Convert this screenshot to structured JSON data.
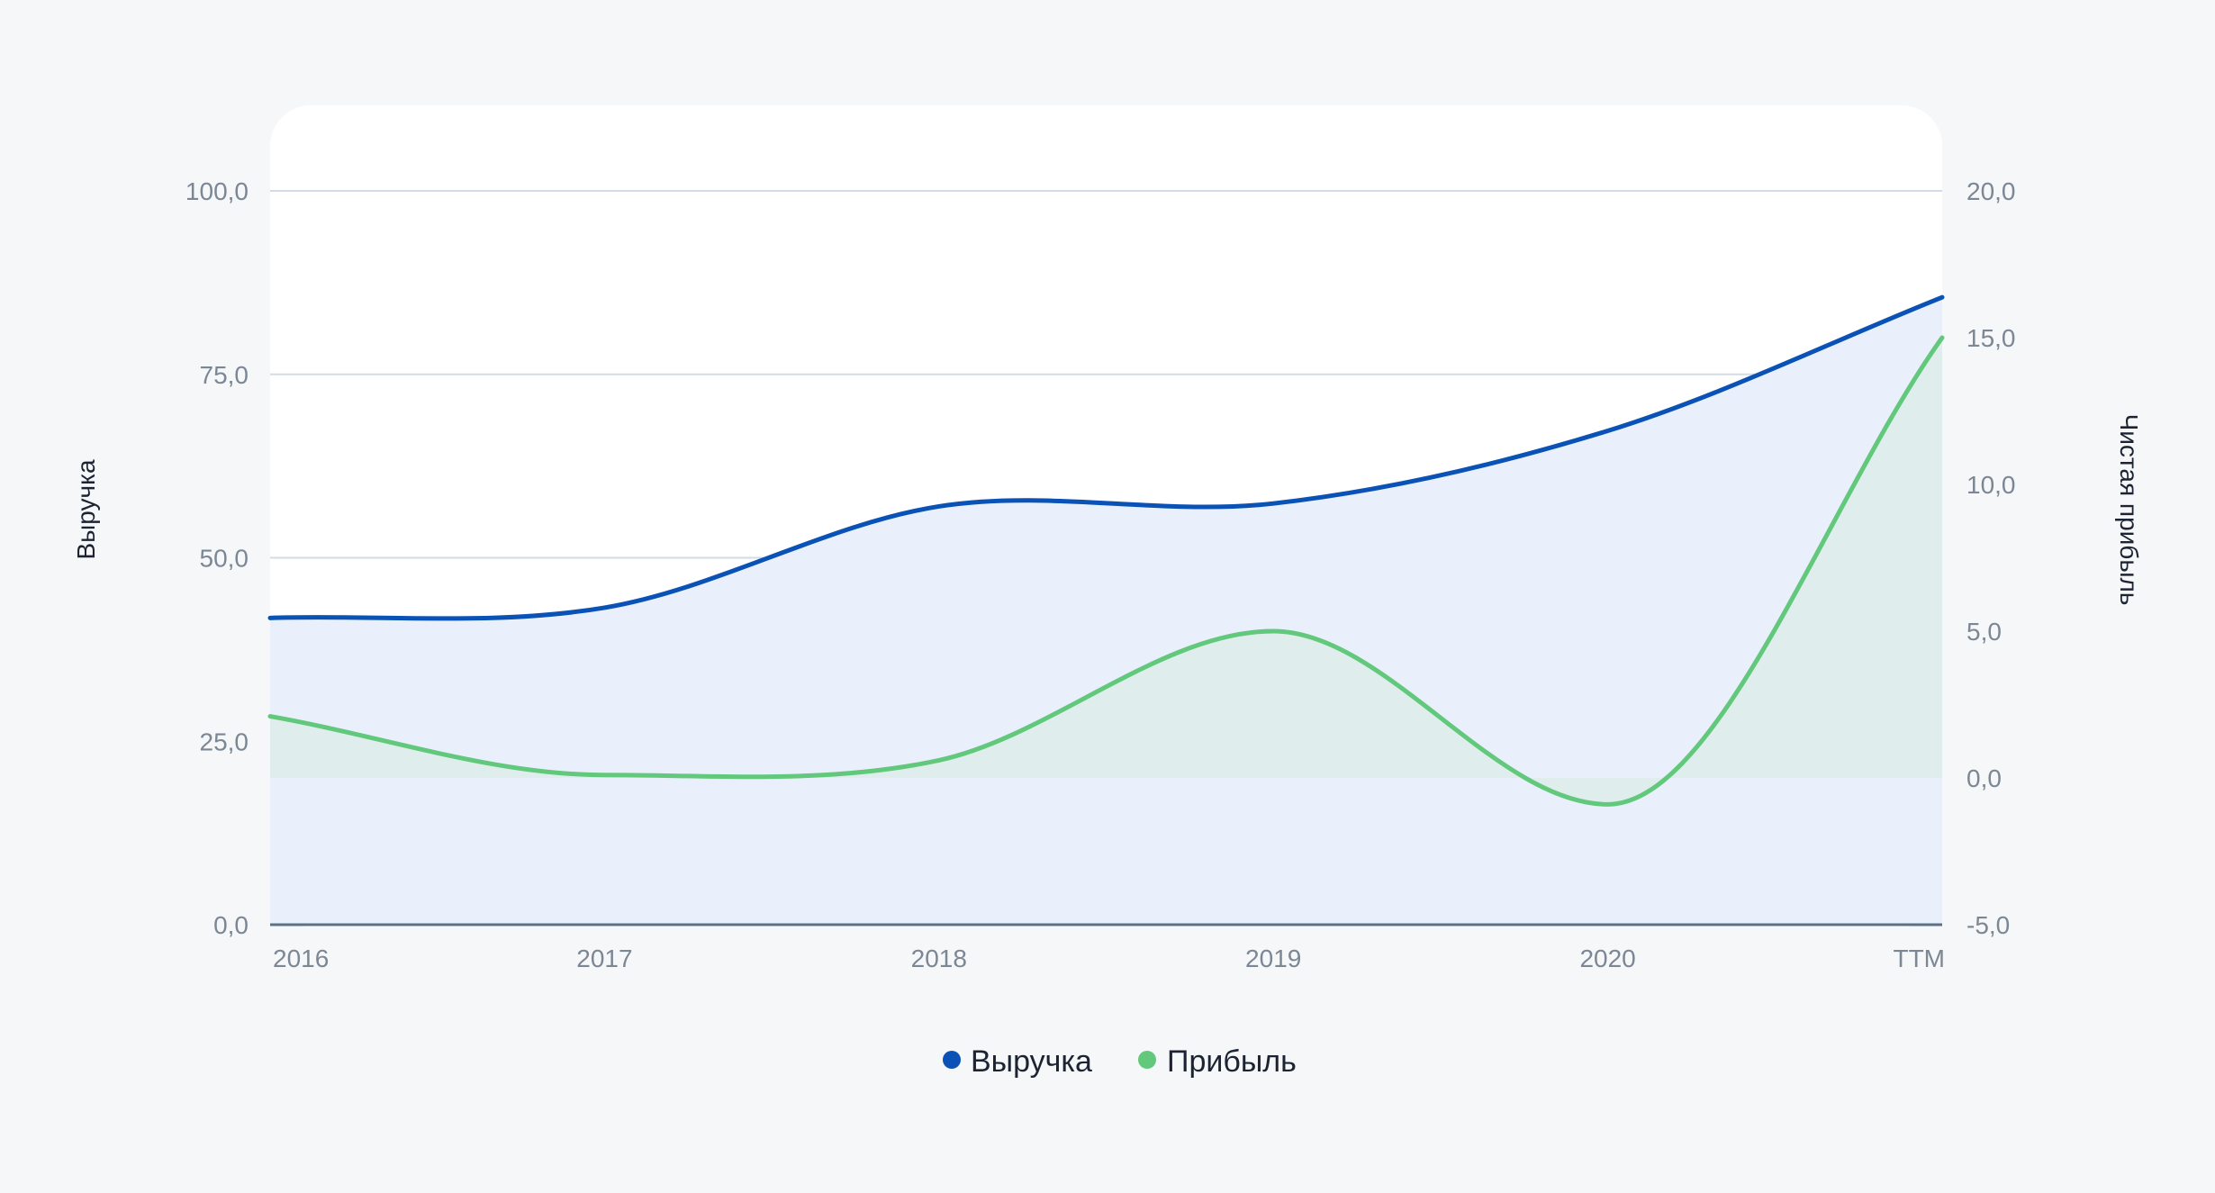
{
  "chart_data": {
    "type": "area",
    "categories": [
      "2016",
      "2017",
      "2018",
      "2019",
      "2020",
      "TTM"
    ],
    "series": [
      {
        "name": "Выручка",
        "axis": "left",
        "color": "#0a52b5",
        "fill": "#e9f0fb",
        "values": [
          41.8,
          43.2,
          57.0,
          57.4,
          67.3,
          85.5
        ]
      },
      {
        "name": "Прибыль",
        "axis": "right",
        "color": "#62c87c",
        "fill": "#dbeee8",
        "values": [
          2.1,
          0.1,
          0.6,
          5.0,
          -0.9,
          15.0
        ]
      }
    ],
    "y_left": {
      "label": "Выручка",
      "lim": [
        0,
        100
      ],
      "ticks": [
        "0,0",
        "25,0",
        "50,0",
        "75,0",
        "100,0"
      ],
      "tick_values": [
        0,
        25,
        50,
        75,
        100
      ]
    },
    "y_right": {
      "label": "Чистая прибыль",
      "lim": [
        -5,
        20
      ],
      "ticks": [
        "-5,0",
        "0,0",
        "5,0",
        "10,0",
        "15,0",
        "20,0"
      ],
      "tick_values": [
        -5,
        0,
        5,
        10,
        15,
        20
      ]
    },
    "grid": true,
    "legend": "bottom-center",
    "colors": {
      "grid": "#d3dbe6",
      "baseline": "#5d7186",
      "plot_bg": "#ffffff",
      "page_bg": "#f6f7f9"
    }
  }
}
